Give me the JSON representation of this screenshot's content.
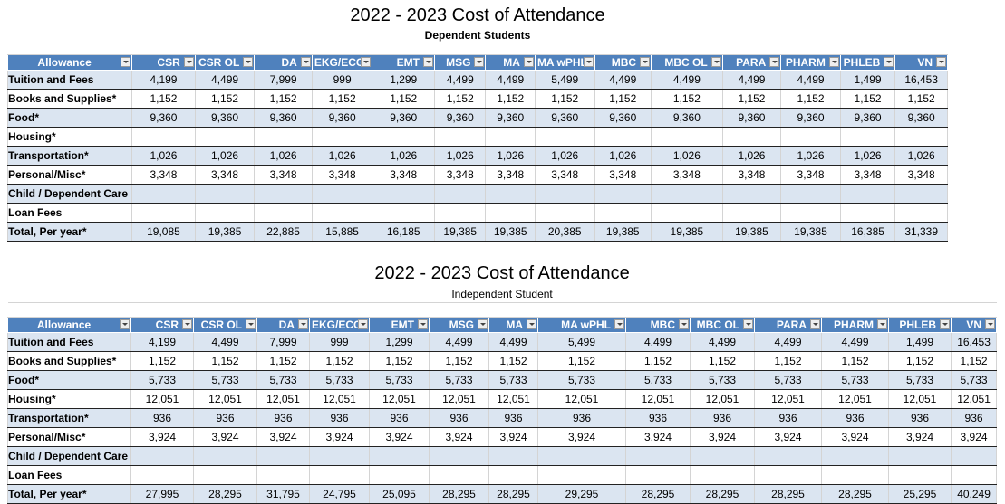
{
  "tables": [
    {
      "title": "2022 - 2023 Cost of Attendance",
      "subtitle": "Dependent Students",
      "allowance_header": "Allowance",
      "columns": [
        "CSR",
        "CSR OL",
        "DA",
        "EKG/ECG",
        "EMT",
        "MSG",
        "MA",
        "MA wPHL",
        "MBC",
        "MBC OL",
        "PARA",
        "PHARM",
        "PHLEB",
        "VN"
      ],
      "rows": [
        {
          "label": "Tuition and Fees",
          "values": [
            "4,199",
            "4,499",
            "7,999",
            "999",
            "1,299",
            "4,499",
            "4,499",
            "5,499",
            "4,499",
            "4,499",
            "4,499",
            "4,499",
            "1,499",
            "16,453"
          ]
        },
        {
          "label": "Books and Supplies*",
          "values": [
            "1,152",
            "1,152",
            "1,152",
            "1,152",
            "1,152",
            "1,152",
            "1,152",
            "1,152",
            "1,152",
            "1,152",
            "1,152",
            "1,152",
            "1,152",
            "1,152"
          ]
        },
        {
          "label": "Food*",
          "values": [
            "9,360",
            "9,360",
            "9,360",
            "9,360",
            "9,360",
            "9,360",
            "9,360",
            "9,360",
            "9,360",
            "9,360",
            "9,360",
            "9,360",
            "9,360",
            "9,360"
          ]
        },
        {
          "label": "Housing*",
          "values": [
            "",
            "",
            "",
            "",
            "",
            "",
            "",
            "",
            "",
            "",
            "",
            "",
            "",
            ""
          ]
        },
        {
          "label": "Transportation*",
          "values": [
            "1,026",
            "1,026",
            "1,026",
            "1,026",
            "1,026",
            "1,026",
            "1,026",
            "1,026",
            "1,026",
            "1,026",
            "1,026",
            "1,026",
            "1,026",
            "1,026"
          ]
        },
        {
          "label": "Personal/Misc*",
          "values": [
            "3,348",
            "3,348",
            "3,348",
            "3,348",
            "3,348",
            "3,348",
            "3,348",
            "3,348",
            "3,348",
            "3,348",
            "3,348",
            "3,348",
            "3,348",
            "3,348"
          ]
        },
        {
          "label": "Child / Dependent Care",
          "values": [
            "",
            "",
            "",
            "",
            "",
            "",
            "",
            "",
            "",
            "",
            "",
            "",
            "",
            ""
          ]
        },
        {
          "label": "Loan Fees",
          "values": [
            "",
            "",
            "",
            "",
            "",
            "",
            "",
            "",
            "",
            "",
            "",
            "",
            "",
            ""
          ]
        },
        {
          "label": "Total, Per year*",
          "values": [
            "19,085",
            "19,385",
            "22,885",
            "15,885",
            "16,185",
            "19,385",
            "19,385",
            "20,385",
            "19,385",
            "19,385",
            "19,385",
            "19,385",
            "16,385",
            "31,339"
          ]
        }
      ]
    },
    {
      "title": "2022 - 2023 Cost of Attendance",
      "subtitle": "Independent Student",
      "allowance_header": "Allowance",
      "columns": [
        "CSR",
        "CSR OL",
        "DA",
        "EKG/ECG",
        "EMT",
        "MSG",
        "MA",
        "MA wPHL",
        "MBC",
        "MBC OL",
        "PARA",
        "PHARM",
        "PHLEB",
        "VN"
      ],
      "rows": [
        {
          "label": "Tuition and Fees",
          "values": [
            "4,199",
            "4,499",
            "7,999",
            "999",
            "1,299",
            "4,499",
            "4,499",
            "5,499",
            "4,499",
            "4,499",
            "4,499",
            "4,499",
            "1,499",
            "16,453"
          ]
        },
        {
          "label": "Books and Supplies*",
          "values": [
            "1,152",
            "1,152",
            "1,152",
            "1,152",
            "1,152",
            "1,152",
            "1,152",
            "1,152",
            "1,152",
            "1,152",
            "1,152",
            "1,152",
            "1,152",
            "1,152"
          ]
        },
        {
          "label": "Food*",
          "values": [
            "5,733",
            "5,733",
            "5,733",
            "5,733",
            "5,733",
            "5,733",
            "5,733",
            "5,733",
            "5,733",
            "5,733",
            "5,733",
            "5,733",
            "5,733",
            "5,733"
          ]
        },
        {
          "label": "Housing*",
          "values": [
            "12,051",
            "12,051",
            "12,051",
            "12,051",
            "12,051",
            "12,051",
            "12,051",
            "12,051",
            "12,051",
            "12,051",
            "12,051",
            "12,051",
            "12,051",
            "12,051"
          ]
        },
        {
          "label": "Transportation*",
          "values": [
            "936",
            "936",
            "936",
            "936",
            "936",
            "936",
            "936",
            "936",
            "936",
            "936",
            "936",
            "936",
            "936",
            "936"
          ]
        },
        {
          "label": "Personal/Misc*",
          "values": [
            "3,924",
            "3,924",
            "3,924",
            "3,924",
            "3,924",
            "3,924",
            "3,924",
            "3,924",
            "3,924",
            "3,924",
            "3,924",
            "3,924",
            "3,924",
            "3,924"
          ]
        },
        {
          "label": "Child / Dependent Care",
          "values": [
            "",
            "",
            "",
            "",
            "",
            "",
            "",
            "",
            "",
            "",
            "",
            "",
            "",
            ""
          ]
        },
        {
          "label": "Loan Fees",
          "values": [
            "",
            "",
            "",
            "",
            "",
            "",
            "",
            "",
            "",
            "",
            "",
            "",
            "",
            ""
          ]
        },
        {
          "label": "Total, Per year*",
          "values": [
            "27,995",
            "28,295",
            "31,795",
            "24,795",
            "25,095",
            "28,295",
            "28,295",
            "29,295",
            "28,295",
            "28,295",
            "28,295",
            "28,295",
            "25,295",
            "40,249"
          ]
        }
      ]
    }
  ]
}
